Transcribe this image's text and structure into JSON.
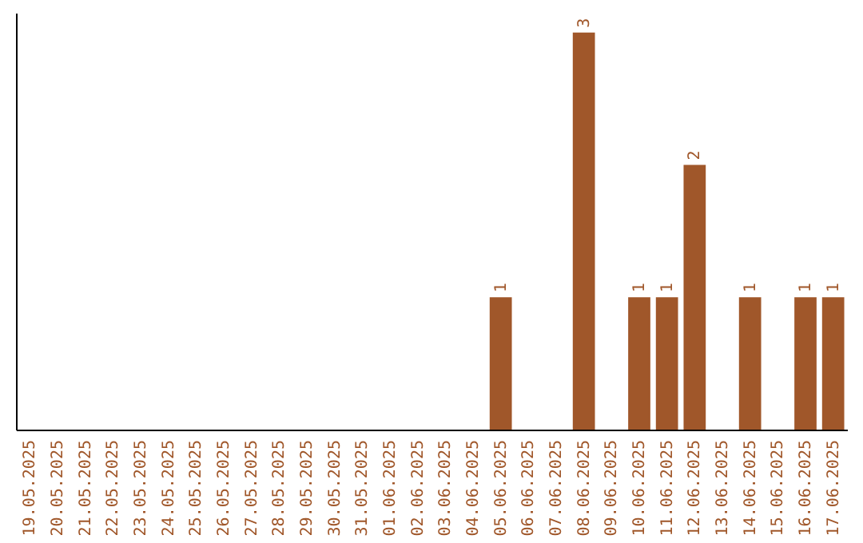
{
  "chart_data": {
    "type": "bar",
    "categories": [
      "19.05.2025",
      "20.05.2025",
      "21.05.2025",
      "22.05.2025",
      "23.05.2025",
      "24.05.2025",
      "25.05.2025",
      "26.05.2025",
      "27.05.2025",
      "28.05.2025",
      "29.05.2025",
      "30.05.2025",
      "31.05.2025",
      "01.06.2025",
      "02.06.2025",
      "03.06.2025",
      "04.06.2025",
      "05.06.2025",
      "06.06.2025",
      "07.06.2025",
      "08.06.2025",
      "09.06.2025",
      "10.06.2025",
      "11.06.2025",
      "12.06.2025",
      "13.06.2025",
      "14.06.2025",
      "15.06.2025",
      "16.06.2025",
      "17.06.2025"
    ],
    "values": [
      null,
      null,
      null,
      null,
      null,
      null,
      null,
      null,
      null,
      null,
      null,
      null,
      null,
      null,
      null,
      null,
      null,
      1,
      null,
      null,
      3,
      null,
      1,
      1,
      2,
      null,
      1,
      null,
      1,
      1
    ],
    "data_labels": true,
    "color": "#a0572a",
    "ylim": [
      0,
      3.15
    ]
  }
}
